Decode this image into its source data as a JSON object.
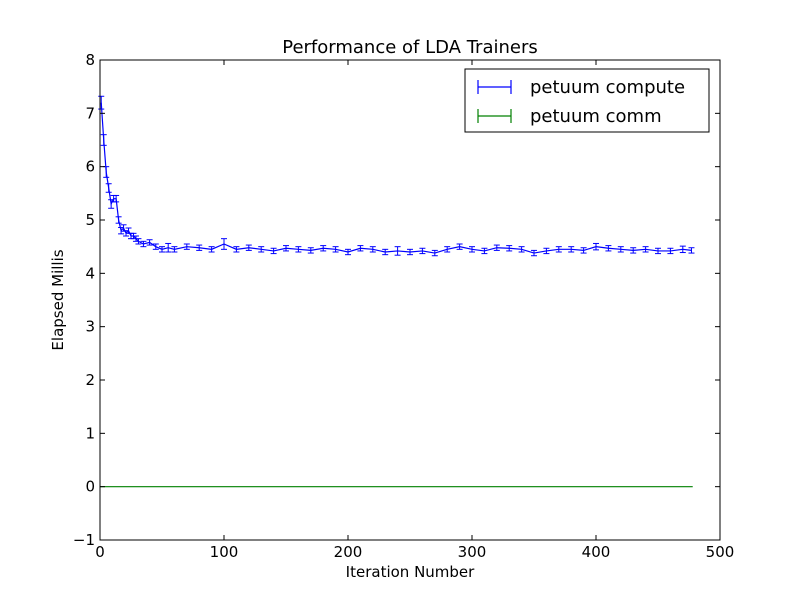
{
  "chart_data": {
    "type": "line",
    "title": "Performance of LDA Trainers",
    "xlabel": "Iteration Number",
    "ylabel": "Elapsed Millis",
    "xlim": [
      0,
      500
    ],
    "ylim": [
      -1,
      8
    ],
    "xticks": [
      0,
      100,
      200,
      300,
      400,
      500
    ],
    "yticks": [
      -1,
      0,
      1,
      2,
      3,
      4,
      5,
      6,
      7,
      8
    ],
    "grid": false,
    "legend_position": "top-right",
    "series": [
      {
        "name": "petuum compute",
        "color": "#0000ff",
        "error_bars": true,
        "x": [
          1,
          3,
          5,
          7,
          9,
          11,
          13,
          15,
          17,
          19,
          21,
          23,
          25,
          27,
          29,
          31,
          35,
          40,
          45,
          50,
          55,
          60,
          70,
          80,
          90,
          100,
          110,
          120,
          130,
          140,
          150,
          160,
          170,
          180,
          190,
          200,
          210,
          220,
          230,
          240,
          250,
          260,
          270,
          280,
          290,
          300,
          310,
          320,
          330,
          340,
          350,
          360,
          370,
          380,
          390,
          400,
          410,
          420,
          430,
          440,
          450,
          460,
          470,
          477
        ],
        "values": [
          7.2,
          6.5,
          5.9,
          5.6,
          5.3,
          5.4,
          5.4,
          5.0,
          4.8,
          4.85,
          4.75,
          4.8,
          4.7,
          4.7,
          4.65,
          4.6,
          4.55,
          4.58,
          4.5,
          4.45,
          4.48,
          4.45,
          4.5,
          4.48,
          4.45,
          4.55,
          4.45,
          4.48,
          4.45,
          4.42,
          4.47,
          4.45,
          4.43,
          4.47,
          4.45,
          4.4,
          4.47,
          4.45,
          4.4,
          4.42,
          4.4,
          4.42,
          4.38,
          4.45,
          4.5,
          4.45,
          4.42,
          4.48,
          4.47,
          4.45,
          4.38,
          4.42,
          4.45,
          4.45,
          4.43,
          4.5,
          4.47,
          4.45,
          4.43,
          4.45,
          4.42,
          4.42,
          4.45,
          4.43
        ],
        "errors": [
          0.12,
          0.1,
          0.1,
          0.08,
          0.08,
          0.06,
          0.06,
          0.06,
          0.06,
          0.06,
          0.05,
          0.05,
          0.05,
          0.05,
          0.05,
          0.05,
          0.05,
          0.05,
          0.05,
          0.05,
          0.08,
          0.05,
          0.05,
          0.05,
          0.05,
          0.1,
          0.05,
          0.05,
          0.05,
          0.05,
          0.05,
          0.05,
          0.05,
          0.05,
          0.05,
          0.05,
          0.05,
          0.05,
          0.05,
          0.08,
          0.05,
          0.05,
          0.05,
          0.05,
          0.05,
          0.05,
          0.05,
          0.05,
          0.05,
          0.05,
          0.05,
          0.05,
          0.05,
          0.05,
          0.05,
          0.06,
          0.05,
          0.05,
          0.05,
          0.05,
          0.05,
          0.05,
          0.06,
          0.05
        ]
      },
      {
        "name": "petuum comm",
        "color": "#008000",
        "error_bars": true,
        "x": [
          0,
          478
        ],
        "values": [
          0,
          0
        ],
        "errors": [
          0,
          0
        ]
      }
    ]
  }
}
